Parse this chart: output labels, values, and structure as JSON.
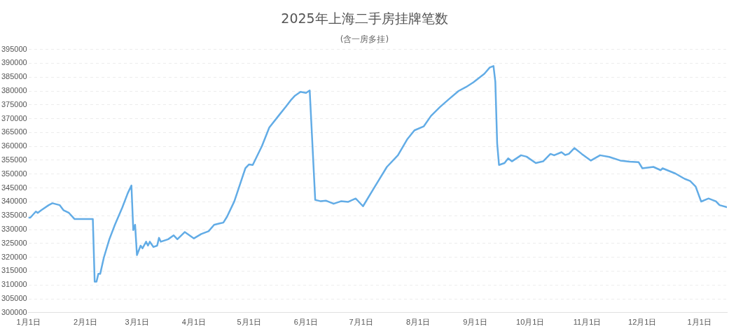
{
  "chart_data": {
    "type": "line",
    "title": "2025年上海二手房挂牌笔数",
    "subtitle": "(含一房多挂)",
    "x": [
      "2025-01-01",
      "2025-01-02",
      "2025-01-05",
      "2025-01-06",
      "2025-01-08",
      "2025-01-12",
      "2025-01-14",
      "2025-01-18",
      "2025-01-20",
      "2025-01-23",
      "2025-01-26",
      "2025-02-05",
      "2025-02-06",
      "2025-02-07",
      "2025-02-08",
      "2025-02-09",
      "2025-02-11",
      "2025-02-14",
      "2025-02-17",
      "2025-02-21",
      "2025-02-24",
      "2025-02-26",
      "2025-02-27",
      "2025-02-28",
      "2025-03-01",
      "2025-03-03",
      "2025-03-04",
      "2025-03-06",
      "2025-03-07",
      "2025-03-08",
      "2025-03-10",
      "2025-03-12",
      "2025-03-13",
      "2025-03-14",
      "2025-03-18",
      "2025-03-21",
      "2025-03-23",
      "2025-03-27",
      "2025-04-01",
      "2025-04-05",
      "2025-04-09",
      "2025-04-12",
      "2025-04-15",
      "2025-04-17",
      "2025-04-19",
      "2025-04-23",
      "2025-04-29",
      "2025-05-01",
      "2025-05-03",
      "2025-05-08",
      "2025-05-12",
      "2025-05-17",
      "2025-05-21",
      "2025-05-24",
      "2025-05-26",
      "2025-05-29",
      "2025-06-01",
      "2025-06-03",
      "2025-06-06",
      "2025-06-09",
      "2025-06-12",
      "2025-06-16",
      "2025-06-20",
      "2025-06-24",
      "2025-06-28",
      "2025-07-02",
      "2025-07-08",
      "2025-07-15",
      "2025-07-21",
      "2025-07-26",
      "2025-07-30",
      "2025-08-04",
      "2025-08-08",
      "2025-08-13",
      "2025-08-18",
      "2025-08-23",
      "2025-08-27",
      "2025-08-31",
      "2025-09-06",
      "2025-09-09",
      "2025-09-11",
      "2025-09-12",
      "2025-09-13",
      "2025-09-14",
      "2025-09-17",
      "2025-09-19",
      "2025-09-21",
      "2025-09-26",
      "2025-09-29",
      "2025-10-04",
      "2025-10-08",
      "2025-10-12",
      "2025-10-14",
      "2025-10-18",
      "2025-10-20",
      "2025-10-22",
      "2025-10-25",
      "2025-10-29",
      "2025-11-03",
      "2025-11-08",
      "2025-11-13",
      "2025-11-19",
      "2025-11-24",
      "2025-11-29",
      "2025-12-01",
      "2025-12-07",
      "2025-12-11",
      "2025-12-12",
      "2025-12-19",
      "2025-12-24",
      "2025-12-27",
      "2025-12-30",
      "2026-01-02",
      "2026-01-06",
      "2026-01-10",
      "2026-01-12",
      "2026-01-16"
    ],
    "series": [
      {
        "color": "#62ace6",
        "values": [
          334300,
          334300,
          336500,
          336000,
          337000,
          338800,
          339500,
          338800,
          337000,
          336000,
          333800,
          333800,
          311200,
          311200,
          314000,
          314000,
          319900,
          326500,
          331700,
          337900,
          343100,
          345900,
          329800,
          331700,
          320800,
          324200,
          323200,
          325600,
          324200,
          325600,
          323700,
          324200,
          327000,
          325600,
          326500,
          327900,
          326500,
          329100,
          326800,
          328400,
          329400,
          331700,
          332200,
          332500,
          334600,
          340200,
          352100,
          353500,
          353300,
          360100,
          366800,
          371000,
          374300,
          376900,
          378300,
          379700,
          379300,
          380200,
          340700,
          340200,
          340400,
          339300,
          340200,
          340000,
          341200,
          338400,
          345000,
          352600,
          356800,
          362500,
          365800,
          367200,
          371000,
          374300,
          377200,
          380000,
          381400,
          383100,
          386200,
          388500,
          389000,
          383300,
          361100,
          353300,
          354000,
          355700,
          354600,
          356800,
          356300,
          354000,
          354600,
          357300,
          356800,
          357900,
          356900,
          357300,
          359400,
          357300,
          354900,
          356800,
          356200,
          354900,
          354500,
          354300,
          352100,
          352600,
          351400,
          352100,
          350200,
          348300,
          347500,
          345500,
          340100,
          341200,
          340200,
          338800,
          338100
        ]
      }
    ],
    "xlim": [
      "2025-01-01",
      "2026-01-16"
    ],
    "xticks": [
      {
        "value": "2025-01-01",
        "label": "1月1日"
      },
      {
        "value": "2025-02-01",
        "label": "2月1日"
      },
      {
        "value": "2025-03-01",
        "label": "3月1日"
      },
      {
        "value": "2025-04-01",
        "label": "4月1日"
      },
      {
        "value": "2025-05-01",
        "label": "5月1日"
      },
      {
        "value": "2025-06-01",
        "label": "6月1日"
      },
      {
        "value": "2025-07-01",
        "label": "7月1日"
      },
      {
        "value": "2025-08-01",
        "label": "8月1日"
      },
      {
        "value": "2025-09-01",
        "label": "9月1日"
      },
      {
        "value": "2025-10-01",
        "label": "10月1日"
      },
      {
        "value": "2025-11-01",
        "label": "11月1日"
      },
      {
        "value": "2025-12-01",
        "label": "12月1日"
      },
      {
        "value": "2026-01-01",
        "label": "1月1日"
      }
    ],
    "ylim": [
      300000,
      395000
    ],
    "yticks": [
      300000,
      305000,
      310000,
      315000,
      320000,
      325000,
      330000,
      335000,
      340000,
      345000,
      350000,
      355000,
      360000,
      365000,
      370000,
      375000,
      380000,
      385000,
      390000,
      395000
    ],
    "grid": "y",
    "marker": "none",
    "line_style": "solid",
    "legend": false
  }
}
